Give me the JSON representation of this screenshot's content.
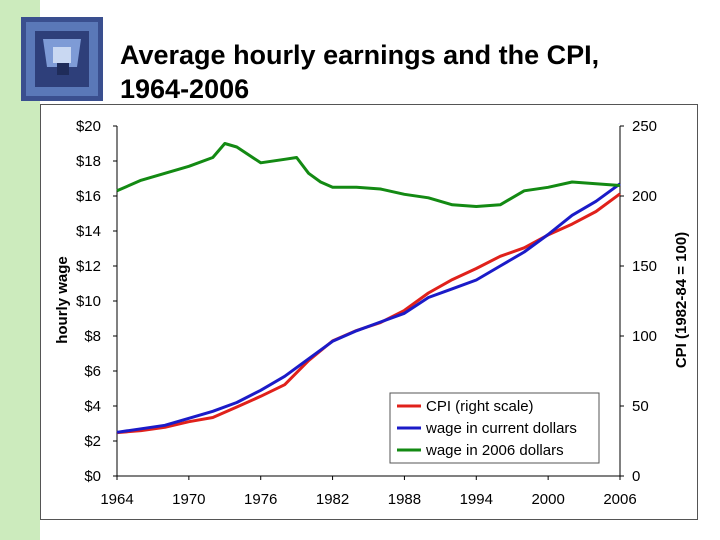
{
  "slide": {
    "title_line1": "Average hourly earnings and the CPI,",
    "title_line2": "1964-2006"
  },
  "colors": {
    "strip": "#ccebbd",
    "cpi": "#e0211b",
    "wage_current": "#1b1bc8",
    "wage_2006": "#138a13"
  },
  "chart_data": {
    "type": "line",
    "title": "",
    "xlabel": "",
    "ylabel": "hourly wage",
    "y2label": "CPI  (1982-84 = 100)",
    "xlim": [
      1964,
      2006
    ],
    "ylim": [
      0,
      20
    ],
    "y2lim": [
      0,
      250
    ],
    "x_ticks": [
      "1964",
      "1970",
      "1976",
      "1982",
      "1988",
      "1994",
      "2000",
      "2006"
    ],
    "y_ticks": [
      "$0",
      "$2",
      "$4",
      "$6",
      "$8",
      "$10",
      "$12",
      "$14",
      "$16",
      "$18",
      "$20"
    ],
    "y2_ticks": [
      "0",
      "50",
      "100",
      "150",
      "200",
      "250"
    ],
    "grid": false,
    "legend_position": "bottom-right",
    "series": [
      {
        "name": "CPI  (right scale)",
        "axis": "right",
        "x": [
          1964,
          1966,
          1968,
          1970,
          1972,
          1974,
          1976,
          1978,
          1980,
          1982,
          1984,
          1986,
          1988,
          1990,
          1992,
          1994,
          1996,
          1998,
          2000,
          2002,
          2004,
          2006
        ],
        "values": [
          31.0,
          32.4,
          34.8,
          38.8,
          41.8,
          49.3,
          56.9,
          65.2,
          82.4,
          96.5,
          103.9,
          109.6,
          118.3,
          130.7,
          140.3,
          148.2,
          156.9,
          163.0,
          172.2,
          179.9,
          188.9,
          201.6
        ]
      },
      {
        "name": "wage in current dollars",
        "axis": "left",
        "x": [
          1964,
          1966,
          1968,
          1970,
          1972,
          1974,
          1976,
          1978,
          1980,
          1982,
          1984,
          1986,
          1988,
          1990,
          1992,
          1994,
          1996,
          1998,
          2000,
          2002,
          2004,
          2006
        ],
        "values": [
          2.5,
          2.7,
          2.9,
          3.3,
          3.7,
          4.2,
          4.9,
          5.7,
          6.7,
          7.7,
          8.3,
          8.8,
          9.3,
          10.2,
          10.7,
          11.2,
          12.0,
          12.8,
          13.8,
          14.9,
          15.7,
          16.7
        ]
      },
      {
        "name": "wage in 2006 dollars",
        "axis": "left",
        "x": [
          1964,
          1966,
          1968,
          1970,
          1972,
          1973,
          1974,
          1976,
          1978,
          1979,
          1980,
          1981,
          1982,
          1984,
          1986,
          1988,
          1990,
          1992,
          1994,
          1996,
          1998,
          2000,
          2002,
          2004,
          2006
        ],
        "values": [
          16.3,
          16.9,
          17.3,
          17.7,
          18.2,
          19.0,
          18.8,
          17.9,
          18.1,
          18.2,
          17.3,
          16.8,
          16.5,
          16.5,
          16.4,
          16.1,
          15.9,
          15.5,
          15.4,
          15.5,
          16.3,
          16.5,
          16.8,
          16.7,
          16.6
        ]
      }
    ]
  }
}
